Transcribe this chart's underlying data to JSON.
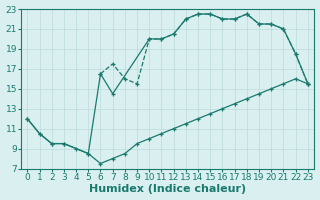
{
  "xlabel": "Humidex (Indice chaleur)",
  "bg_color": "#d9eff0",
  "grid_color": "#c2dede",
  "line_color": "#1a7a6e",
  "xlim": [
    -0.5,
    23.5
  ],
  "ylim": [
    7,
    23
  ],
  "xticks": [
    0,
    1,
    2,
    3,
    4,
    5,
    6,
    7,
    8,
    9,
    10,
    11,
    12,
    13,
    14,
    15,
    16,
    17,
    18,
    19,
    20,
    21,
    22,
    23
  ],
  "yticks": [
    7,
    9,
    11,
    13,
    15,
    17,
    19,
    21,
    23
  ],
  "line1_x": [
    0,
    1,
    2,
    3,
    4,
    5,
    6,
    7,
    8,
    9,
    10,
    11,
    12,
    13,
    14,
    15,
    16,
    17,
    18,
    19,
    20,
    21,
    22,
    23
  ],
  "line1_y": [
    12,
    10.5,
    9.5,
    9.5,
    9,
    8.5,
    7.5,
    8.0,
    8.5,
    9.5,
    10,
    10.5,
    11,
    11.5,
    12,
    12.5,
    13,
    13.5,
    14,
    14.5,
    15,
    15.5,
    16,
    15.5
  ],
  "line2_x": [
    0,
    1,
    2,
    3,
    5,
    6,
    7,
    10,
    11,
    12,
    13,
    14,
    15,
    16,
    17,
    18,
    19,
    20,
    21,
    22,
    23
  ],
  "line2_y": [
    12,
    10.5,
    9.5,
    9.5,
    8.5,
    16.5,
    14.5,
    20,
    20,
    20.5,
    22,
    22.5,
    22.5,
    22,
    22,
    22.5,
    21.5,
    21.5,
    21,
    18.5,
    15.5
  ],
  "line3_x": [
    6,
    7,
    8,
    9,
    10,
    11,
    12,
    13,
    14,
    15,
    16,
    17,
    18,
    19,
    20,
    21,
    22,
    23
  ],
  "line3_y": [
    16.5,
    17.5,
    16,
    15.5,
    20,
    20,
    20.5,
    22,
    22.5,
    22.5,
    22,
    22,
    22.5,
    21.5,
    21.5,
    21,
    18.5,
    15.5
  ],
  "xlabel_fontsize": 8,
  "tick_fontsize": 6.5
}
